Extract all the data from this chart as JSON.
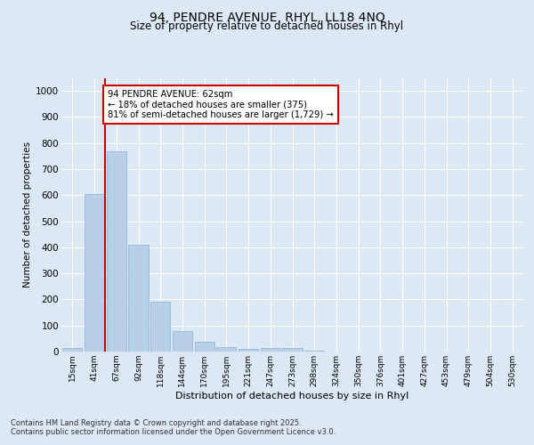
{
  "title_line1": "94, PENDRE AVENUE, RHYL, LL18 4NQ",
  "title_line2": "Size of property relative to detached houses in Rhyl",
  "xlabel": "Distribution of detached houses by size in Rhyl",
  "ylabel": "Number of detached properties",
  "categories": [
    "15sqm",
    "41sqm",
    "67sqm",
    "92sqm",
    "118sqm",
    "144sqm",
    "170sqm",
    "195sqm",
    "221sqm",
    "247sqm",
    "273sqm",
    "298sqm",
    "324sqm",
    "350sqm",
    "376sqm",
    "401sqm",
    "427sqm",
    "453sqm",
    "479sqm",
    "504sqm",
    "530sqm"
  ],
  "values": [
    15,
    605,
    770,
    410,
    190,
    78,
    37,
    18,
    10,
    13,
    13,
    5,
    0,
    0,
    0,
    0,
    0,
    0,
    0,
    0,
    0
  ],
  "bar_color": "#b8cfe8",
  "bar_edge_color": "#8ab0d4",
  "annotation_text": "94 PENDRE AVENUE: 62sqm\n← 18% of detached houses are smaller (375)\n81% of semi-detached houses are larger (1,729) →",
  "annotation_box_color": "#ffffff",
  "annotation_box_edge": "#cc0000",
  "vline_color": "#cc0000",
  "vline_x": 1.5,
  "ylim": [
    0,
    1050
  ],
  "yticks": [
    0,
    100,
    200,
    300,
    400,
    500,
    600,
    700,
    800,
    900,
    1000
  ],
  "footer_line1": "Contains HM Land Registry data © Crown copyright and database right 2025.",
  "footer_line2": "Contains public sector information licensed under the Open Government Licence v3.0.",
  "bg_color": "#dde8f5",
  "plot_bg_color": "#dde8f5",
  "grid_color": "#ffffff"
}
